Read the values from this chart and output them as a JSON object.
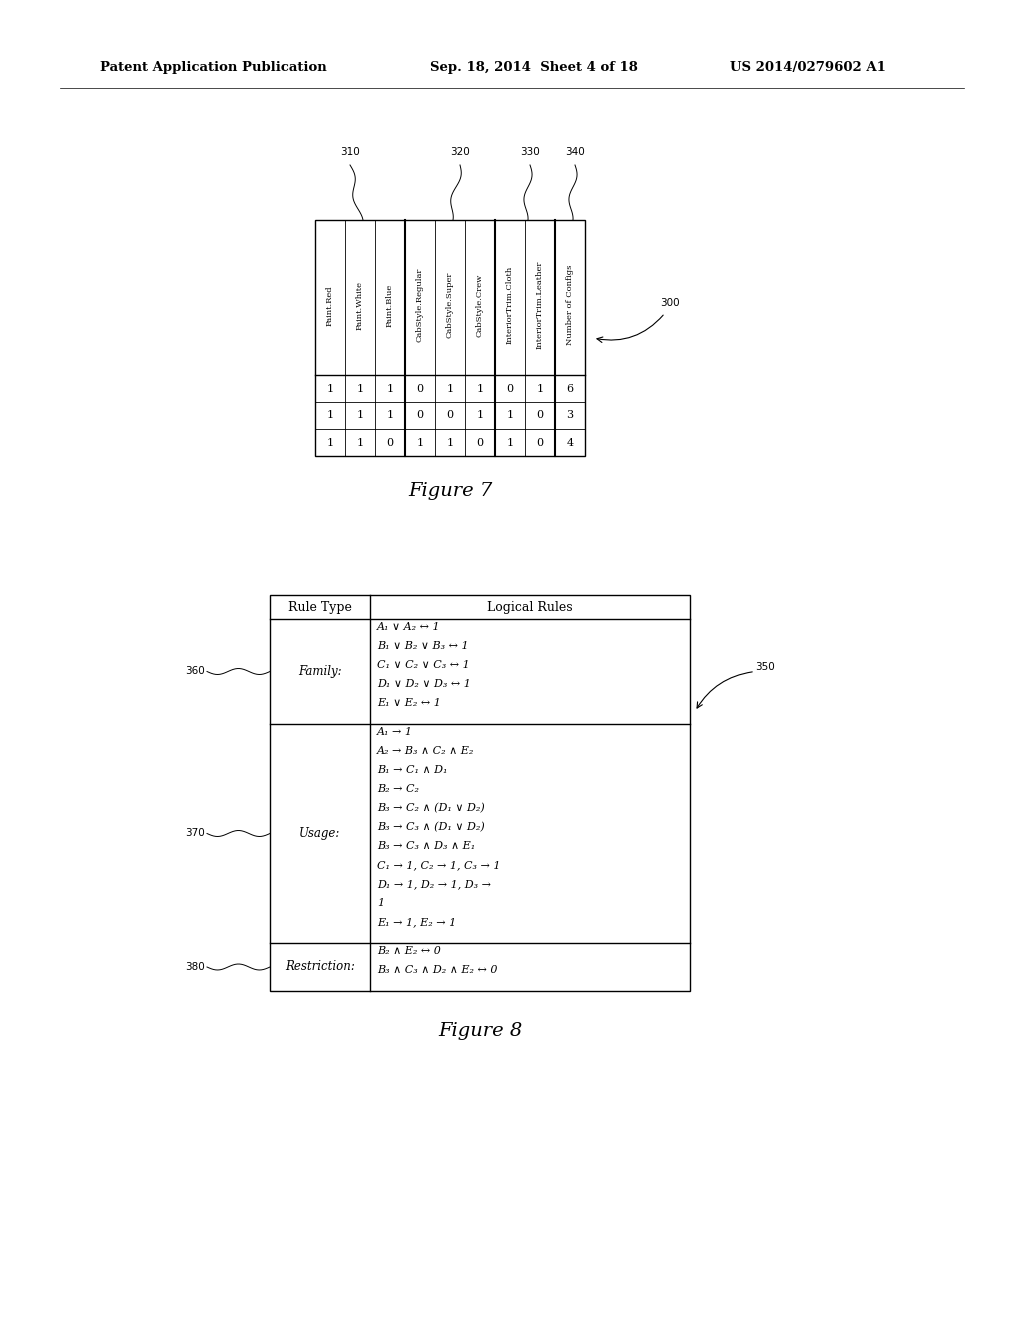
{
  "header_left": "Patent Application Publication",
  "header_mid": "Sep. 18, 2014  Sheet 4 of 18",
  "header_right": "US 2014/0279602 A1",
  "fig7_label": "Figure 7",
  "fig8_label": "Figure 8",
  "fig7_col_labels": [
    "310",
    "320",
    "330",
    "340"
  ],
  "table7_columns": [
    "Paint.Red",
    "Paint.White",
    "Paint.Blue",
    "CabStyle.Regular",
    "CabStyle.Super",
    "CabStyle.Crew",
    "InteriorTrim.Cloth",
    "InteriorTrim.Leather",
    "Number of Configs"
  ],
  "table7_data": [
    [
      1,
      1,
      1,
      0,
      1,
      1,
      0,
      1,
      6
    ],
    [
      1,
      1,
      1,
      0,
      0,
      1,
      1,
      0,
      3
    ],
    [
      1,
      1,
      0,
      1,
      1,
      0,
      1,
      0,
      4
    ]
  ],
  "table8_rule_type": "Rule Type",
  "table8_logical_rules": "Logical Rules",
  "table8_rows": [
    {
      "type": "Family:",
      "rules": [
        "A₁ ∨ A₂ ↔ 1",
        "B₁ ∨ B₂ ∨ B₃ ↔ 1",
        "C₁ ∨ C₂ ∨ C₃ ↔ 1",
        "D₁ ∨ D₂ ∨ D₃ ↔ 1",
        "E₁ ∨ E₂ ↔ 1"
      ],
      "label": "360"
    },
    {
      "type": "Usage:",
      "rules": [
        "A₁ → 1",
        "A₂ → B₃ ∧ C₂ ∧ E₂",
        "B₁ → C₁ ∧ D₁",
        "B₂ → C₂",
        "B₃ → C₂ ∧ (D₁ ∨ D₂)",
        "B₃ → C₃ ∧ (D₁ ∨ D₂)",
        "B₃ → C₃ ∧ D₃ ∧ E₁",
        "C₁ → 1, C₂ → 1, C₃ → 1",
        "D₁ → 1, D₂ → 1, D₃ →",
        "1",
        "E₁ → 1, E₂ → 1"
      ],
      "label": "370"
    },
    {
      "type": "Restriction:",
      "rules": [
        "B₂ ∧ E₂ ↔ 0",
        "B₃ ∧ C₃ ∧ D₂ ∧ E₂ ↔ 0"
      ],
      "label": "380"
    }
  ],
  "bg_color": "#ffffff",
  "text_color": "#000000"
}
